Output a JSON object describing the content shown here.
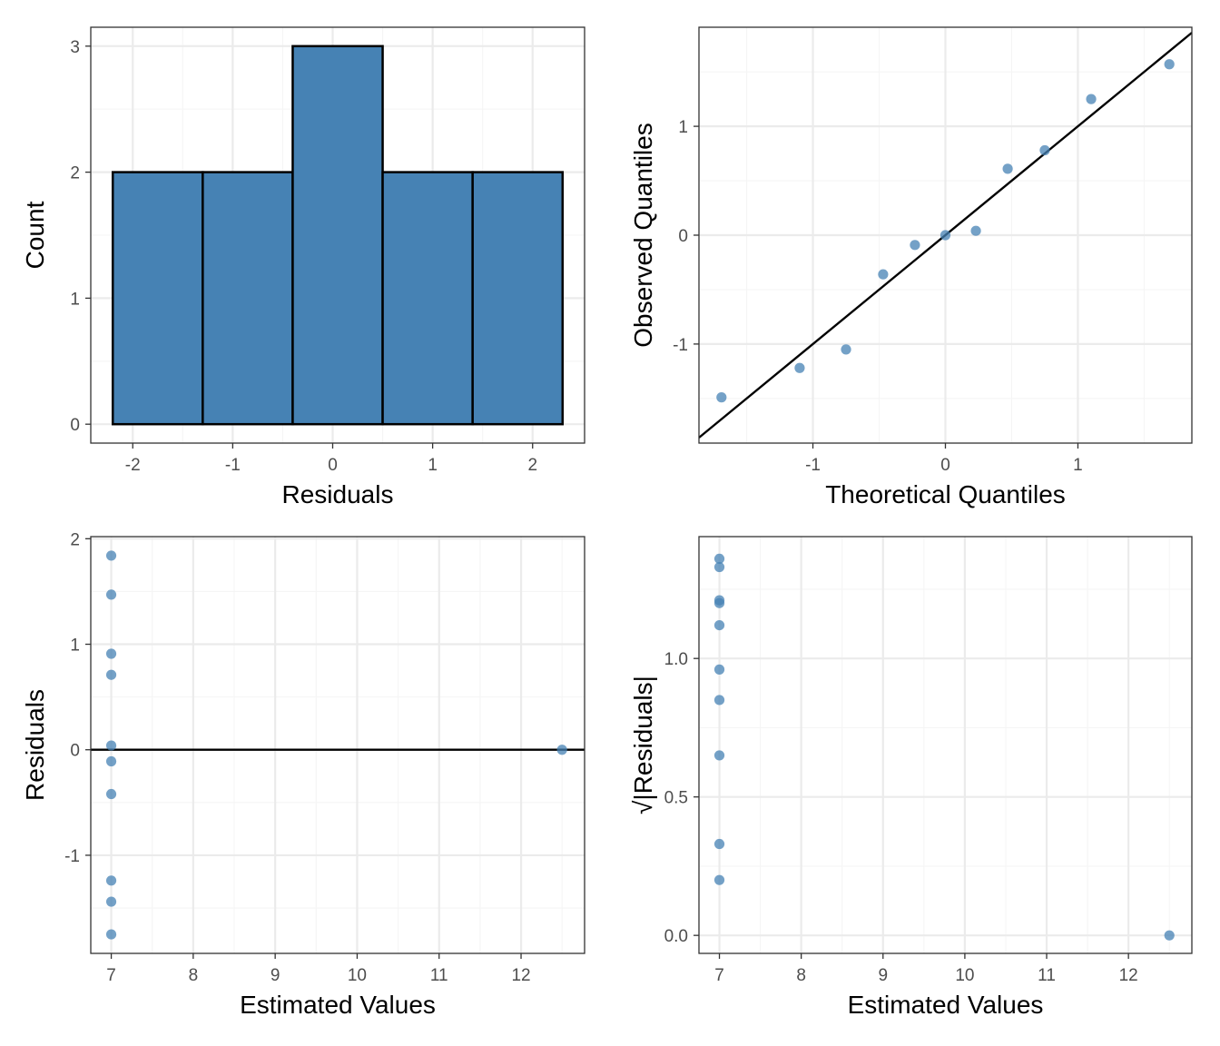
{
  "colors": {
    "point": "#4682b4",
    "bar_fill": "#4682b4",
    "bar_stroke": "#000000",
    "grid_major": "#ebebeb",
    "grid_minor": "#f5f5f5",
    "panel_border": "#333333",
    "reference_line": "#000000"
  },
  "chart_data": [
    {
      "id": "histogram",
      "type": "bar",
      "title": "",
      "xlabel": "Residuals",
      "ylabel": "Count",
      "grid": true,
      "xlim": [
        -2.42,
        2.52
      ],
      "ylim": [
        -0.15,
        3.15
      ],
      "bins": [
        {
          "x0": -2.2,
          "x1": -1.3,
          "count": 2
        },
        {
          "x0": -1.3,
          "x1": -0.4,
          "count": 2
        },
        {
          "x0": -0.4,
          "x1": 0.5,
          "count": 3
        },
        {
          "x0": 0.5,
          "x1": 1.4,
          "count": 2
        },
        {
          "x0": 1.4,
          "x1": 2.3,
          "count": 2
        }
      ],
      "xticks": [
        -2,
        -1,
        0,
        1,
        2
      ],
      "xtick_labels": [
        "-2",
        "-1",
        "0",
        "1",
        "2"
      ],
      "yticks": [
        0,
        1,
        2,
        3
      ],
      "ytick_labels": [
        "0",
        "1",
        "2",
        "3"
      ]
    },
    {
      "id": "qq-plot",
      "type": "scatter",
      "title": "",
      "xlabel": "Theoretical Quantiles",
      "ylabel": "Observed Quantiles",
      "grid": true,
      "xlim": [
        -1.86,
        1.86
      ],
      "ylim": [
        -1.91,
        1.91
      ],
      "points": [
        {
          "x": -1.69,
          "y": -1.49
        },
        {
          "x": -1.1,
          "y": -1.22
        },
        {
          "x": -0.75,
          "y": -1.05
        },
        {
          "x": -0.47,
          "y": -0.36
        },
        {
          "x": -0.23,
          "y": -0.09
        },
        {
          "x": 0.0,
          "y": 0.0
        },
        {
          "x": 0.23,
          "y": 0.04
        },
        {
          "x": 0.47,
          "y": 0.61
        },
        {
          "x": 0.75,
          "y": 0.78
        },
        {
          "x": 1.1,
          "y": 1.25
        },
        {
          "x": 1.69,
          "y": 1.57
        }
      ],
      "reference_line": {
        "slope": 1,
        "intercept": 0
      },
      "xticks": [
        -1,
        0,
        1
      ],
      "xtick_labels": [
        "-1",
        "0",
        "1"
      ],
      "yticks": [
        -1,
        0,
        1
      ],
      "ytick_labels": [
        "-1",
        "0",
        "1"
      ]
    },
    {
      "id": "residuals-vs-fitted",
      "type": "scatter",
      "title": "",
      "xlabel": "Estimated Values",
      "ylabel": "Residuals",
      "grid": true,
      "xlim": [
        6.75,
        12.775
      ],
      "ylim": [
        -1.93,
        2.02
      ],
      "points": [
        {
          "x": 7,
          "y": 1.84
        },
        {
          "x": 7,
          "y": 1.47
        },
        {
          "x": 7,
          "y": 0.91
        },
        {
          "x": 7,
          "y": 0.71
        },
        {
          "x": 7,
          "y": 0.04
        },
        {
          "x": 7,
          "y": -0.11
        },
        {
          "x": 7,
          "y": -0.42
        },
        {
          "x": 7,
          "y": -1.24
        },
        {
          "x": 7,
          "y": -1.44
        },
        {
          "x": 7,
          "y": -1.75
        },
        {
          "x": 12.5,
          "y": 0.0
        }
      ],
      "reference_line": {
        "slope": 0,
        "intercept": 0
      },
      "xticks": [
        7,
        8,
        9,
        10,
        11,
        12
      ],
      "xtick_labels": [
        "7",
        "8",
        "9",
        "10",
        "11",
        "12"
      ],
      "yticks": [
        -1,
        0,
        1,
        2
      ],
      "ytick_labels": [
        "-1",
        "0",
        "1",
        "2"
      ]
    },
    {
      "id": "scale-location",
      "type": "scatter",
      "title": "",
      "xlabel": "Estimated Values",
      "ylabel": "√|Residuals|",
      "grid": true,
      "xlim": [
        6.75,
        12.775
      ],
      "ylim": [
        -0.065,
        1.44
      ],
      "points": [
        {
          "x": 7,
          "y": 1.36
        },
        {
          "x": 7,
          "y": 1.33
        },
        {
          "x": 7,
          "y": 1.21
        },
        {
          "x": 7,
          "y": 1.2
        },
        {
          "x": 7,
          "y": 1.12
        },
        {
          "x": 7,
          "y": 0.96
        },
        {
          "x": 7,
          "y": 0.85
        },
        {
          "x": 7,
          "y": 0.65
        },
        {
          "x": 7,
          "y": 0.33
        },
        {
          "x": 7,
          "y": 0.2
        },
        {
          "x": 12.5,
          "y": 0.0
        }
      ],
      "xticks": [
        7,
        8,
        9,
        10,
        11,
        12
      ],
      "xtick_labels": [
        "7",
        "8",
        "9",
        "10",
        "11",
        "12"
      ],
      "yticks": [
        0.0,
        0.5,
        1.0
      ],
      "ytick_labels": [
        "0.0",
        "0.5",
        "1.0"
      ]
    }
  ]
}
